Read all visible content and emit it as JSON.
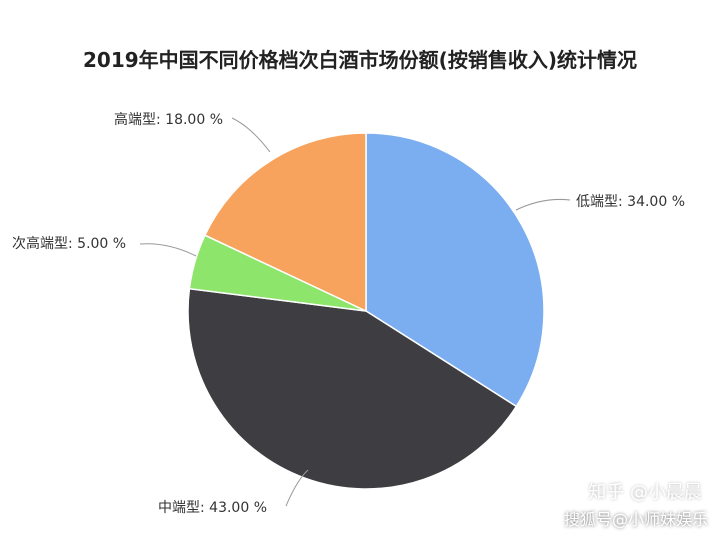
{
  "chart_data": {
    "type": "pie",
    "title": "2019年中国不同价格档次白酒市场份额(按销售收入)统计情况",
    "slices": [
      {
        "label": "低端型",
        "value": 34.0,
        "text": "34.00 %",
        "color": "#7aaef0"
      },
      {
        "label": "中端型",
        "value": 43.0,
        "text": "43.00 %",
        "color": "#3e3e42"
      },
      {
        "label": "次高端型",
        "value": 5.0,
        "text": "5.00 %",
        "color": "#8ee56c"
      },
      {
        "label": "高端型",
        "value": 18.0,
        "text": "18.00 %",
        "color": "#f7a25d"
      }
    ],
    "start_angle_deg": 0,
    "direction": "clockwise"
  },
  "watermarks": {
    "brand": "知乎 @小晨晨",
    "source": "搜狐号@小师妹娱乐"
  }
}
